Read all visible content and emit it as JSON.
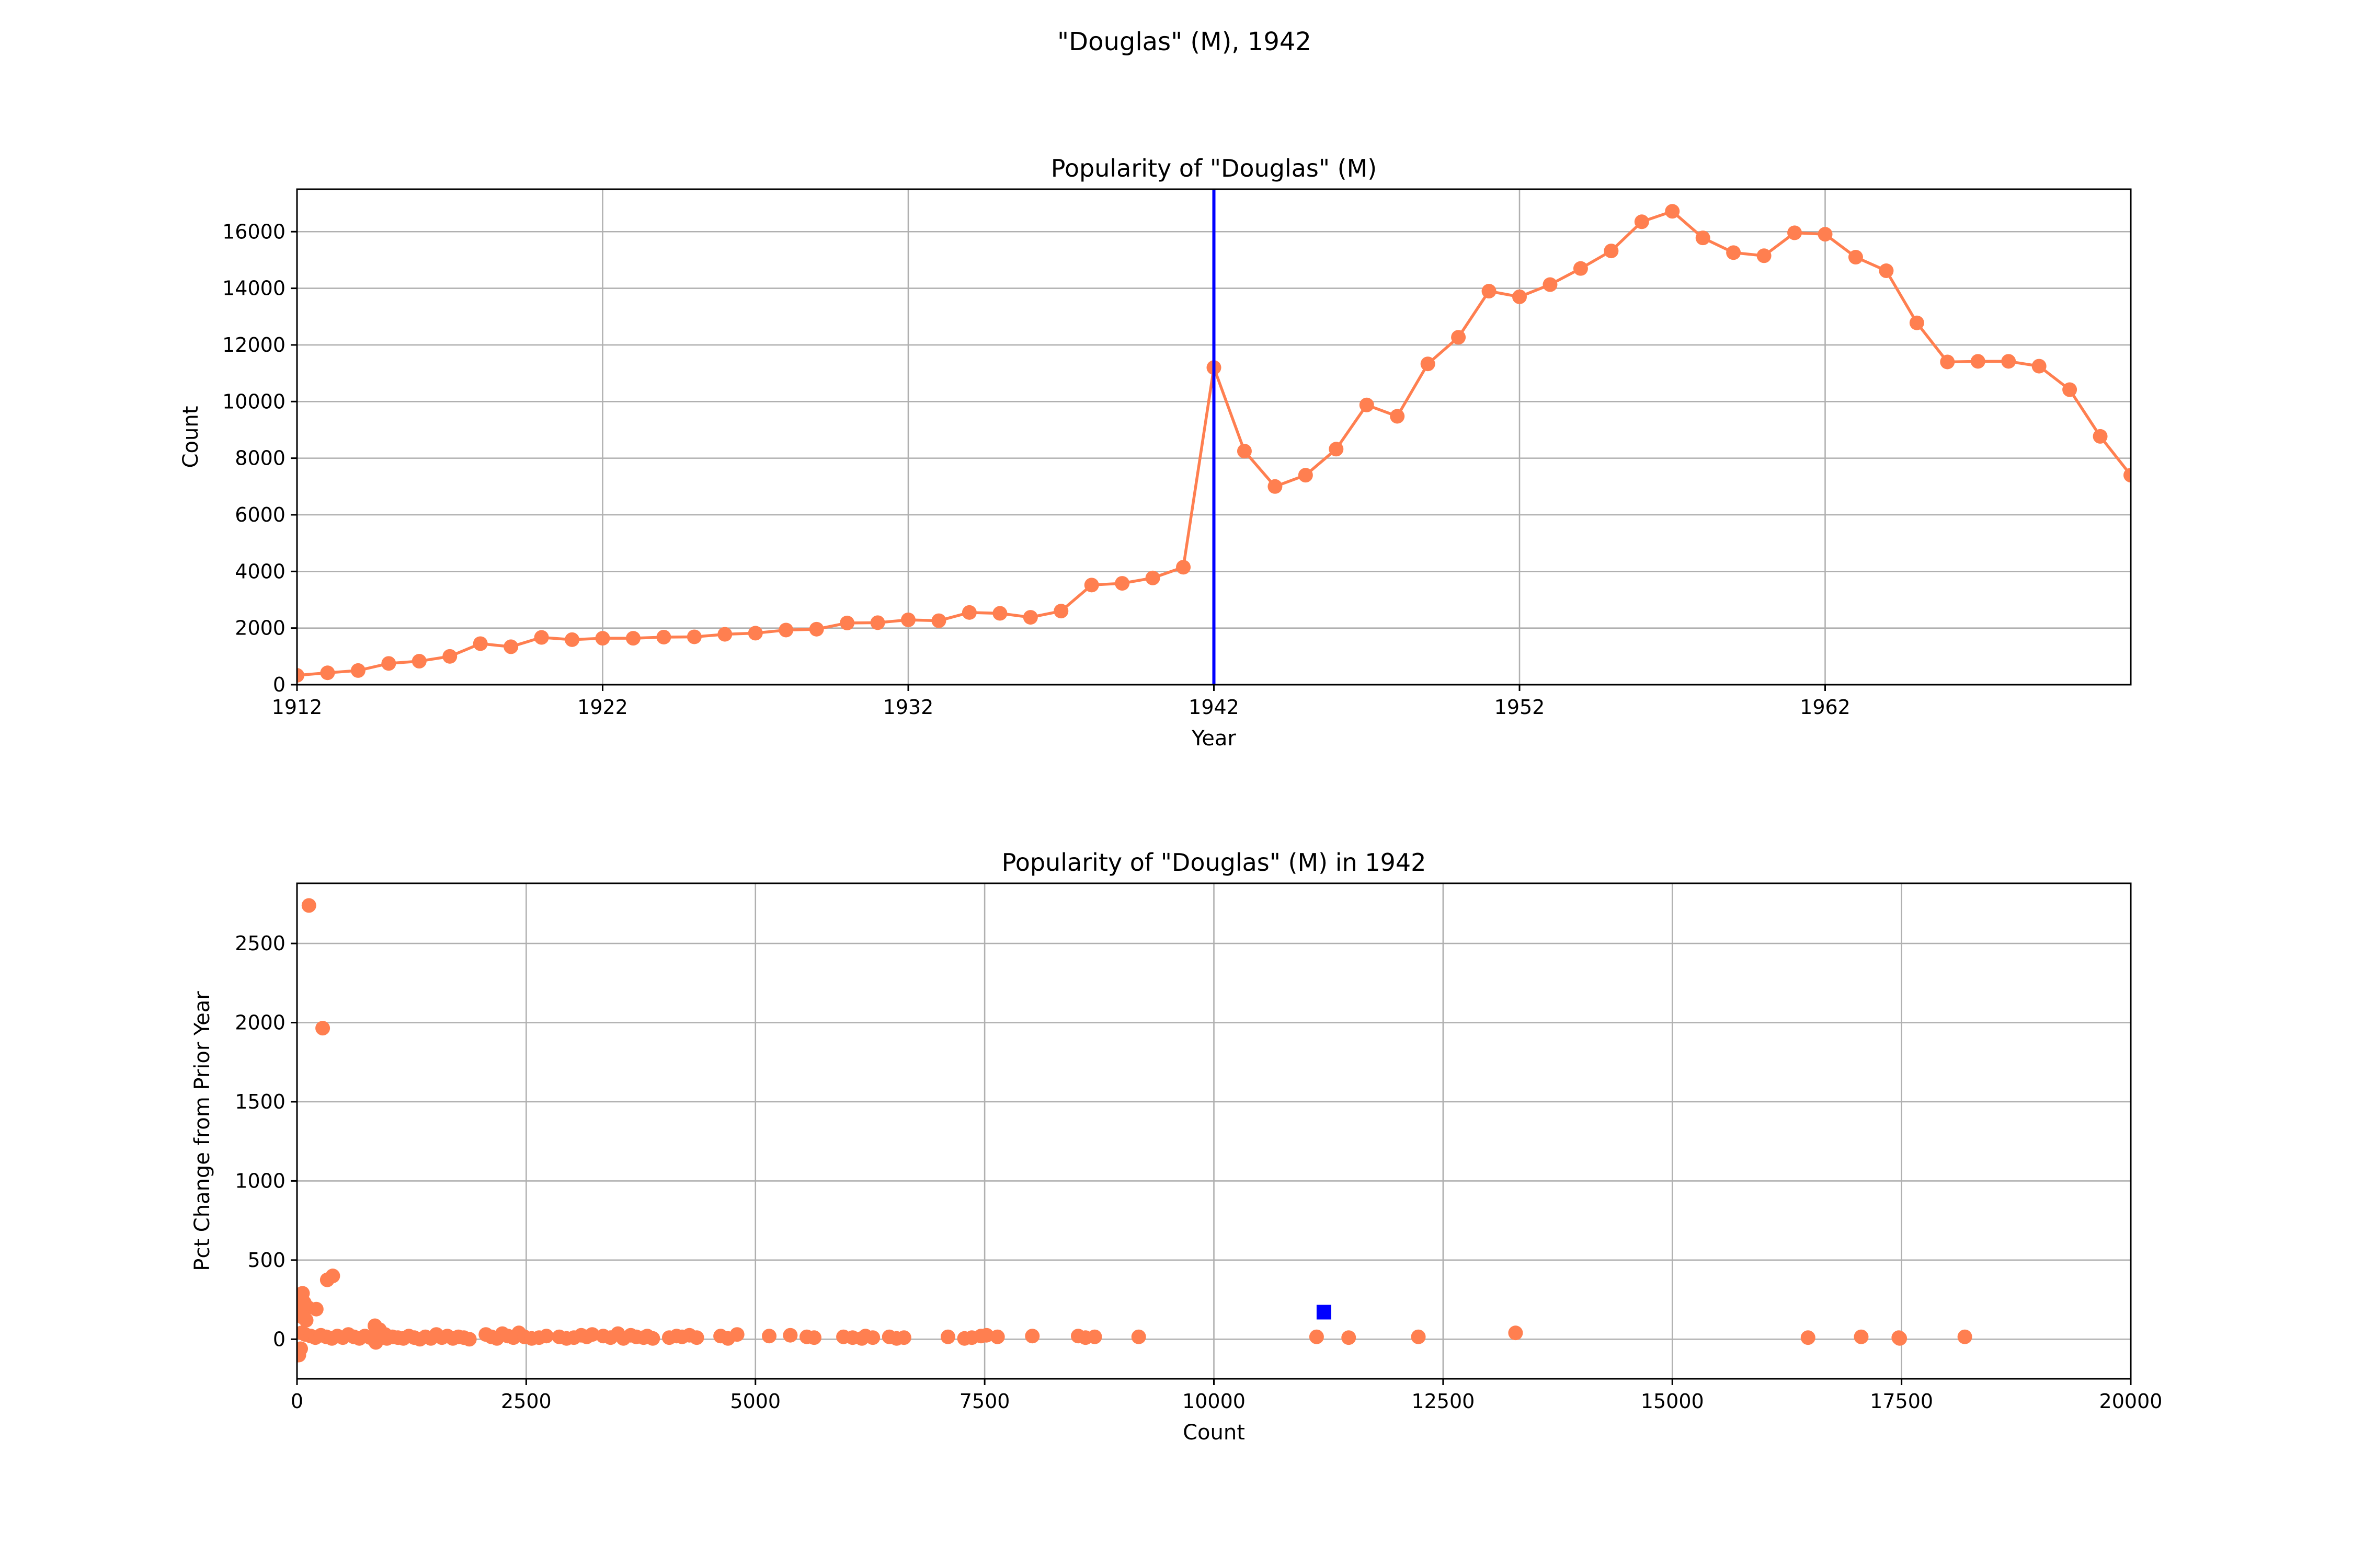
{
  "figure": {
    "suptitle": "\"Douglas\" (M), 1942"
  },
  "chart_data": [
    {
      "type": "line",
      "title": "Popularity of \"Douglas\" (M)",
      "xlabel": "Year",
      "ylabel": "Count",
      "xlim": [
        1912,
        1972
      ],
      "ylim": [
        0,
        17500
      ],
      "xticks": [
        1912,
        1922,
        1932,
        1942,
        1952,
        1962
      ],
      "yticks": [
        0,
        2000,
        4000,
        6000,
        8000,
        10000,
        12000,
        14000,
        16000
      ],
      "grid": true,
      "line_color": "#ff7f50",
      "marker_color": "#ff7f50",
      "highlight_x": 1942,
      "highlight_color": "#0000ff",
      "series": [
        {
          "x": [
            1912,
            1913,
            1914,
            1915,
            1916,
            1917,
            1918,
            1919,
            1920,
            1921,
            1922,
            1923,
            1924,
            1925,
            1926,
            1927,
            1928,
            1929,
            1930,
            1931,
            1932,
            1933,
            1934,
            1935,
            1936,
            1937,
            1938,
            1939,
            1940,
            1941,
            1942,
            1943,
            1944,
            1945,
            1946,
            1947,
            1948,
            1949,
            1950,
            1951,
            1952,
            1953,
            1954,
            1955,
            1956,
            1957,
            1958,
            1959,
            1960,
            1961,
            1962,
            1963,
            1964,
            1965,
            1966,
            1967,
            1968,
            1969,
            1970,
            1971,
            1972
          ],
          "y": [
            330,
            420,
            500,
            750,
            830,
            1000,
            1450,
            1340,
            1670,
            1590,
            1640,
            1640,
            1680,
            1690,
            1780,
            1820,
            1930,
            1960,
            2180,
            2190,
            2290,
            2260,
            2550,
            2520,
            2380,
            2600,
            3520,
            3580,
            3770,
            4150,
            11200,
            8250,
            7000,
            7400,
            8320,
            9880,
            9480,
            11330,
            12270,
            13900,
            13700,
            14130,
            14700,
            15320,
            16350,
            16720,
            15780,
            15260,
            15150,
            15960,
            15910,
            15100,
            14620,
            12780,
            11400,
            11420,
            11420,
            11250,
            10420,
            8770,
            7400
          ]
        }
      ]
    },
    {
      "type": "scatter",
      "title": "Popularity of \"Douglas\" (M) in 1942",
      "xlabel": "Count",
      "ylabel": "Pct Change from Prior Year",
      "xlim": [
        0,
        20000
      ],
      "ylim": [
        -250,
        2880
      ],
      "xticks": [
        0,
        2500,
        5000,
        7500,
        10000,
        12500,
        15000,
        17500,
        20000
      ],
      "yticks": [
        0,
        500,
        1000,
        1500,
        2000,
        2500
      ],
      "grid": true,
      "marker_color": "#ff7f50",
      "highlight_color": "#0000ff",
      "points": [
        [
          130,
          2740
        ],
        [
          280,
          1965
        ],
        [
          330,
          375
        ],
        [
          390,
          400
        ],
        [
          60,
          290
        ],
        [
          40,
          240
        ],
        [
          80,
          230
        ],
        [
          120,
          200
        ],
        [
          210,
          190
        ],
        [
          30,
          170
        ],
        [
          60,
          140
        ],
        [
          100,
          120
        ],
        [
          20,
          -100
        ],
        [
          40,
          -60
        ],
        [
          850,
          85
        ],
        [
          900,
          60
        ],
        [
          960,
          30
        ],
        [
          50,
          40
        ],
        [
          90,
          30
        ],
        [
          150,
          20
        ],
        [
          200,
          10
        ],
        [
          260,
          25
        ],
        [
          320,
          15
        ],
        [
          380,
          5
        ],
        [
          440,
          20
        ],
        [
          500,
          10
        ],
        [
          560,
          30
        ],
        [
          620,
          15
        ],
        [
          680,
          5
        ],
        [
          740,
          20
        ],
        [
          800,
          10
        ],
        [
          860,
          -20
        ],
        [
          920,
          25
        ],
        [
          980,
          5
        ],
        [
          1040,
          15
        ],
        [
          1100,
          10
        ],
        [
          1160,
          5
        ],
        [
          1220,
          20
        ],
        [
          1280,
          10
        ],
        [
          1340,
          0
        ],
        [
          1400,
          15
        ],
        [
          1460,
          5
        ],
        [
          1520,
          30
        ],
        [
          1580,
          10
        ],
        [
          1640,
          20
        ],
        [
          1700,
          5
        ],
        [
          1760,
          15
        ],
        [
          1820,
          10
        ],
        [
          1880,
          0
        ],
        [
          2060,
          30
        ],
        [
          2120,
          15
        ],
        [
          2180,
          5
        ],
        [
          2240,
          35
        ],
        [
          2300,
          20
        ],
        [
          2360,
          10
        ],
        [
          2420,
          40
        ],
        [
          2480,
          15
        ],
        [
          2560,
          5
        ],
        [
          2640,
          10
        ],
        [
          2720,
          20
        ],
        [
          2860,
          15
        ],
        [
          2940,
          5
        ],
        [
          3020,
          10
        ],
        [
          3100,
          25
        ],
        [
          3160,
          15
        ],
        [
          3220,
          30
        ],
        [
          3340,
          20
        ],
        [
          3420,
          10
        ],
        [
          3500,
          35
        ],
        [
          3560,
          5
        ],
        [
          3640,
          25
        ],
        [
          3700,
          15
        ],
        [
          3780,
          10
        ],
        [
          3820,
          20
        ],
        [
          3880,
          5
        ],
        [
          4060,
          10
        ],
        [
          4140,
          20
        ],
        [
          4200,
          15
        ],
        [
          4280,
          25
        ],
        [
          4360,
          10
        ],
        [
          4620,
          20
        ],
        [
          4700,
          5
        ],
        [
          4800,
          30
        ],
        [
          5150,
          20
        ],
        [
          5380,
          25
        ],
        [
          5560,
          15
        ],
        [
          5640,
          10
        ],
        [
          5960,
          15
        ],
        [
          6060,
          10
        ],
        [
          6160,
          5
        ],
        [
          6200,
          20
        ],
        [
          6280,
          10
        ],
        [
          6460,
          15
        ],
        [
          6540,
          5
        ],
        [
          6620,
          10
        ],
        [
          7100,
          15
        ],
        [
          7280,
          5
        ],
        [
          7360,
          10
        ],
        [
          7460,
          20
        ],
        [
          7520,
          25
        ],
        [
          7640,
          15
        ],
        [
          8020,
          20
        ],
        [
          8520,
          20
        ],
        [
          8600,
          10
        ],
        [
          8700,
          15
        ],
        [
          9180,
          15
        ],
        [
          11120,
          15
        ],
        [
          11470,
          10
        ],
        [
          12230,
          15
        ],
        [
          13290,
          40
        ],
        [
          16480,
          10
        ],
        [
          17060,
          15
        ],
        [
          17470,
          10
        ],
        [
          17480,
          5
        ],
        [
          18190,
          15
        ]
      ],
      "highlight_point": [
        11200,
        171
      ]
    }
  ]
}
